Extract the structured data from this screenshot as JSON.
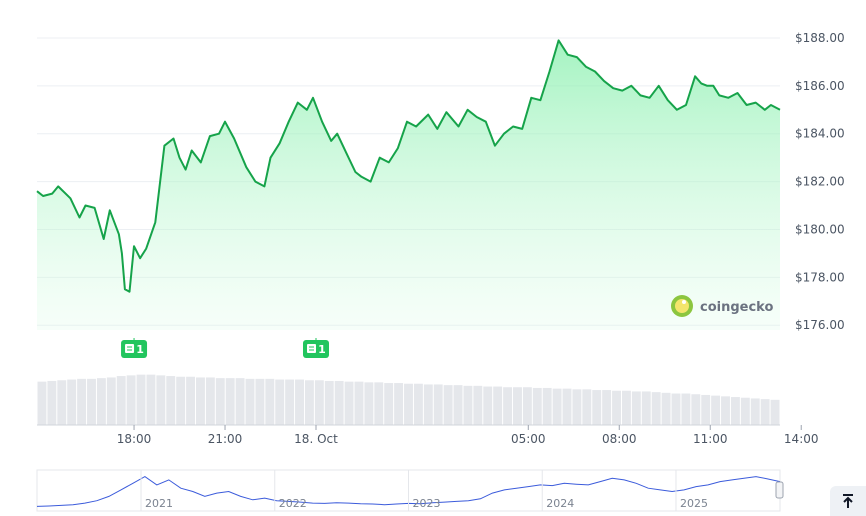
{
  "brand": {
    "name": "coingecko"
  },
  "chart_data": {
    "type": "line",
    "y_axis": {
      "ticks": [
        176,
        178,
        180,
        182,
        184,
        186,
        188
      ],
      "tick_labels": [
        "$176.00",
        "$178.00",
        "$180.00",
        "$182.00",
        "$184.00",
        "$186.00",
        "$188.00"
      ],
      "ylim": [
        175.8,
        188.5
      ],
      "grid": true,
      "position": "right"
    },
    "x_axis": {
      "ticks": [
        1.5,
        4.5,
        7.5,
        14.5,
        17.5,
        20.5,
        23.5
      ],
      "tick_labels": [
        "18:00",
        "21:00",
        "18. Oct",
        "05:00",
        "08:00",
        "11:00",
        "14:00"
      ],
      "xlim": [
        -1.7,
        22.8
      ]
    },
    "series": [
      {
        "color": "#16a34a",
        "fill": "#bbf7d0",
        "x": [
          -1.7,
          -1.5,
          -1.2,
          -1.0,
          -0.6,
          -0.3,
          -0.1,
          0.2,
          0.5,
          0.7,
          1.0,
          1.1,
          1.2,
          1.35,
          1.5,
          1.7,
          1.9,
          2.2,
          2.5,
          2.8,
          3.0,
          3.2,
          3.4,
          3.7,
          4.0,
          4.3,
          4.5,
          4.8,
          5.2,
          5.5,
          5.8,
          6.0,
          6.3,
          6.6,
          6.9,
          7.2,
          7.4,
          7.7,
          8.0,
          8.2,
          8.5,
          8.8,
          9.0,
          9.3,
          9.6,
          9.9,
          10.2,
          10.5,
          10.8,
          11.2,
          11.5,
          11.8,
          12.2,
          12.5,
          12.8,
          13.1,
          13.4,
          13.7,
          14.0,
          14.3,
          14.6,
          14.9,
          15.2,
          15.5,
          15.8,
          16.1,
          16.4,
          16.7,
          17.0,
          17.3,
          17.6,
          17.9,
          18.2,
          18.5,
          18.8,
          19.1,
          19.4,
          19.7,
          20.0,
          20.2,
          20.4,
          20.6,
          20.8,
          21.1,
          21.4,
          21.7,
          22.0,
          22.3,
          22.5,
          22.8
        ],
        "y": [
          181.6,
          181.4,
          181.5,
          181.8,
          181.3,
          180.5,
          181.0,
          180.9,
          179.6,
          180.8,
          179.8,
          179.0,
          177.5,
          177.4,
          179.3,
          178.8,
          179.2,
          180.3,
          183.5,
          183.8,
          183.0,
          182.5,
          183.3,
          182.8,
          183.9,
          184.0,
          184.5,
          183.8,
          182.6,
          182.0,
          181.8,
          183.0,
          183.6,
          184.5,
          185.3,
          185.0,
          185.5,
          184.5,
          183.7,
          184.0,
          183.2,
          182.4,
          182.2,
          182.0,
          183.0,
          182.8,
          183.4,
          184.5,
          184.3,
          184.8,
          184.2,
          184.9,
          184.3,
          185.0,
          184.7,
          184.5,
          183.5,
          184.0,
          184.3,
          184.2,
          185.5,
          185.4,
          186.6,
          187.9,
          187.3,
          187.2,
          186.8,
          186.6,
          186.2,
          185.9,
          185.8,
          186.0,
          185.6,
          185.5,
          186.0,
          185.4,
          185.0,
          185.2,
          186.4,
          186.1,
          186.0,
          186.0,
          185.6,
          185.5,
          185.7,
          185.2,
          185.3,
          185.0,
          185.2,
          185.0
        ]
      }
    ],
    "volume": {
      "color": "#e5e7eb",
      "values": [
        0.62,
        0.63,
        0.64,
        0.65,
        0.66,
        0.66,
        0.67,
        0.68,
        0.7,
        0.71,
        0.72,
        0.72,
        0.71,
        0.7,
        0.69,
        0.69,
        0.68,
        0.68,
        0.67,
        0.67,
        0.67,
        0.66,
        0.66,
        0.66,
        0.65,
        0.65,
        0.65,
        0.64,
        0.64,
        0.63,
        0.63,
        0.62,
        0.62,
        0.61,
        0.61,
        0.6,
        0.6,
        0.59,
        0.59,
        0.58,
        0.58,
        0.57,
        0.57,
        0.56,
        0.56,
        0.55,
        0.55,
        0.54,
        0.54,
        0.54,
        0.53,
        0.53,
        0.52,
        0.52,
        0.51,
        0.51,
        0.5,
        0.5,
        0.49,
        0.49,
        0.48,
        0.48,
        0.47,
        0.46,
        0.45,
        0.45,
        0.44,
        0.43,
        0.42,
        0.41,
        0.4,
        0.39,
        0.38,
        0.37,
        0.36
      ]
    },
    "events": [
      {
        "label": "1",
        "x": 1.5,
        "color": "#22c55e",
        "icon": "news-icon"
      },
      {
        "label": "1",
        "x": 7.5,
        "color": "#22c55e",
        "icon": "news-icon"
      }
    ],
    "navigator": {
      "year_labels": [
        "2021",
        "2022",
        "2023",
        "2024",
        "2025"
      ],
      "year_positions": [
        0.14,
        0.32,
        0.5,
        0.68,
        0.86
      ],
      "color": "#3b5bdb",
      "values": [
        0.05,
        0.06,
        0.08,
        0.1,
        0.15,
        0.22,
        0.35,
        0.55,
        0.75,
        0.95,
        0.7,
        0.85,
        0.6,
        0.5,
        0.35,
        0.45,
        0.5,
        0.35,
        0.25,
        0.3,
        0.22,
        0.2,
        0.18,
        0.15,
        0.14,
        0.16,
        0.15,
        0.13,
        0.12,
        0.1,
        0.12,
        0.14,
        0.13,
        0.16,
        0.18,
        0.2,
        0.22,
        0.28,
        0.45,
        0.55,
        0.6,
        0.65,
        0.7,
        0.68,
        0.75,
        0.72,
        0.7,
        0.8,
        0.9,
        0.85,
        0.75,
        0.6,
        0.55,
        0.5,
        0.55,
        0.65,
        0.7,
        0.8,
        0.85,
        0.9,
        0.95,
        0.88,
        0.8
      ]
    }
  }
}
